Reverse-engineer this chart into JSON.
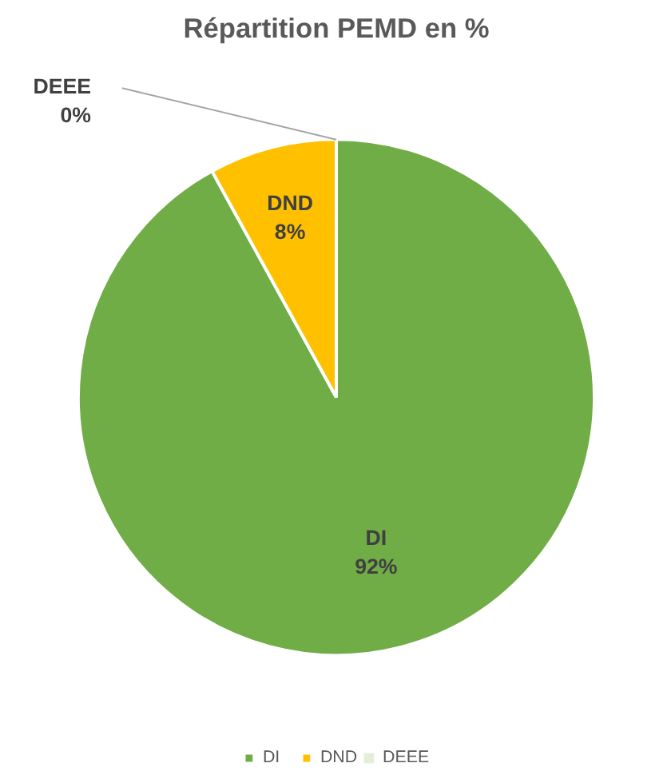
{
  "chart_data": {
    "type": "pie",
    "title": "Répartition PEMD en %",
    "categories": [
      "DI",
      "DND",
      "DEEE"
    ],
    "values": [
      92,
      8,
      0
    ],
    "colors": [
      "#70ad47",
      "#ffc000",
      "#e2efda"
    ],
    "value_labels": [
      "92%",
      "8%",
      "0%"
    ],
    "legend": "bottom"
  }
}
